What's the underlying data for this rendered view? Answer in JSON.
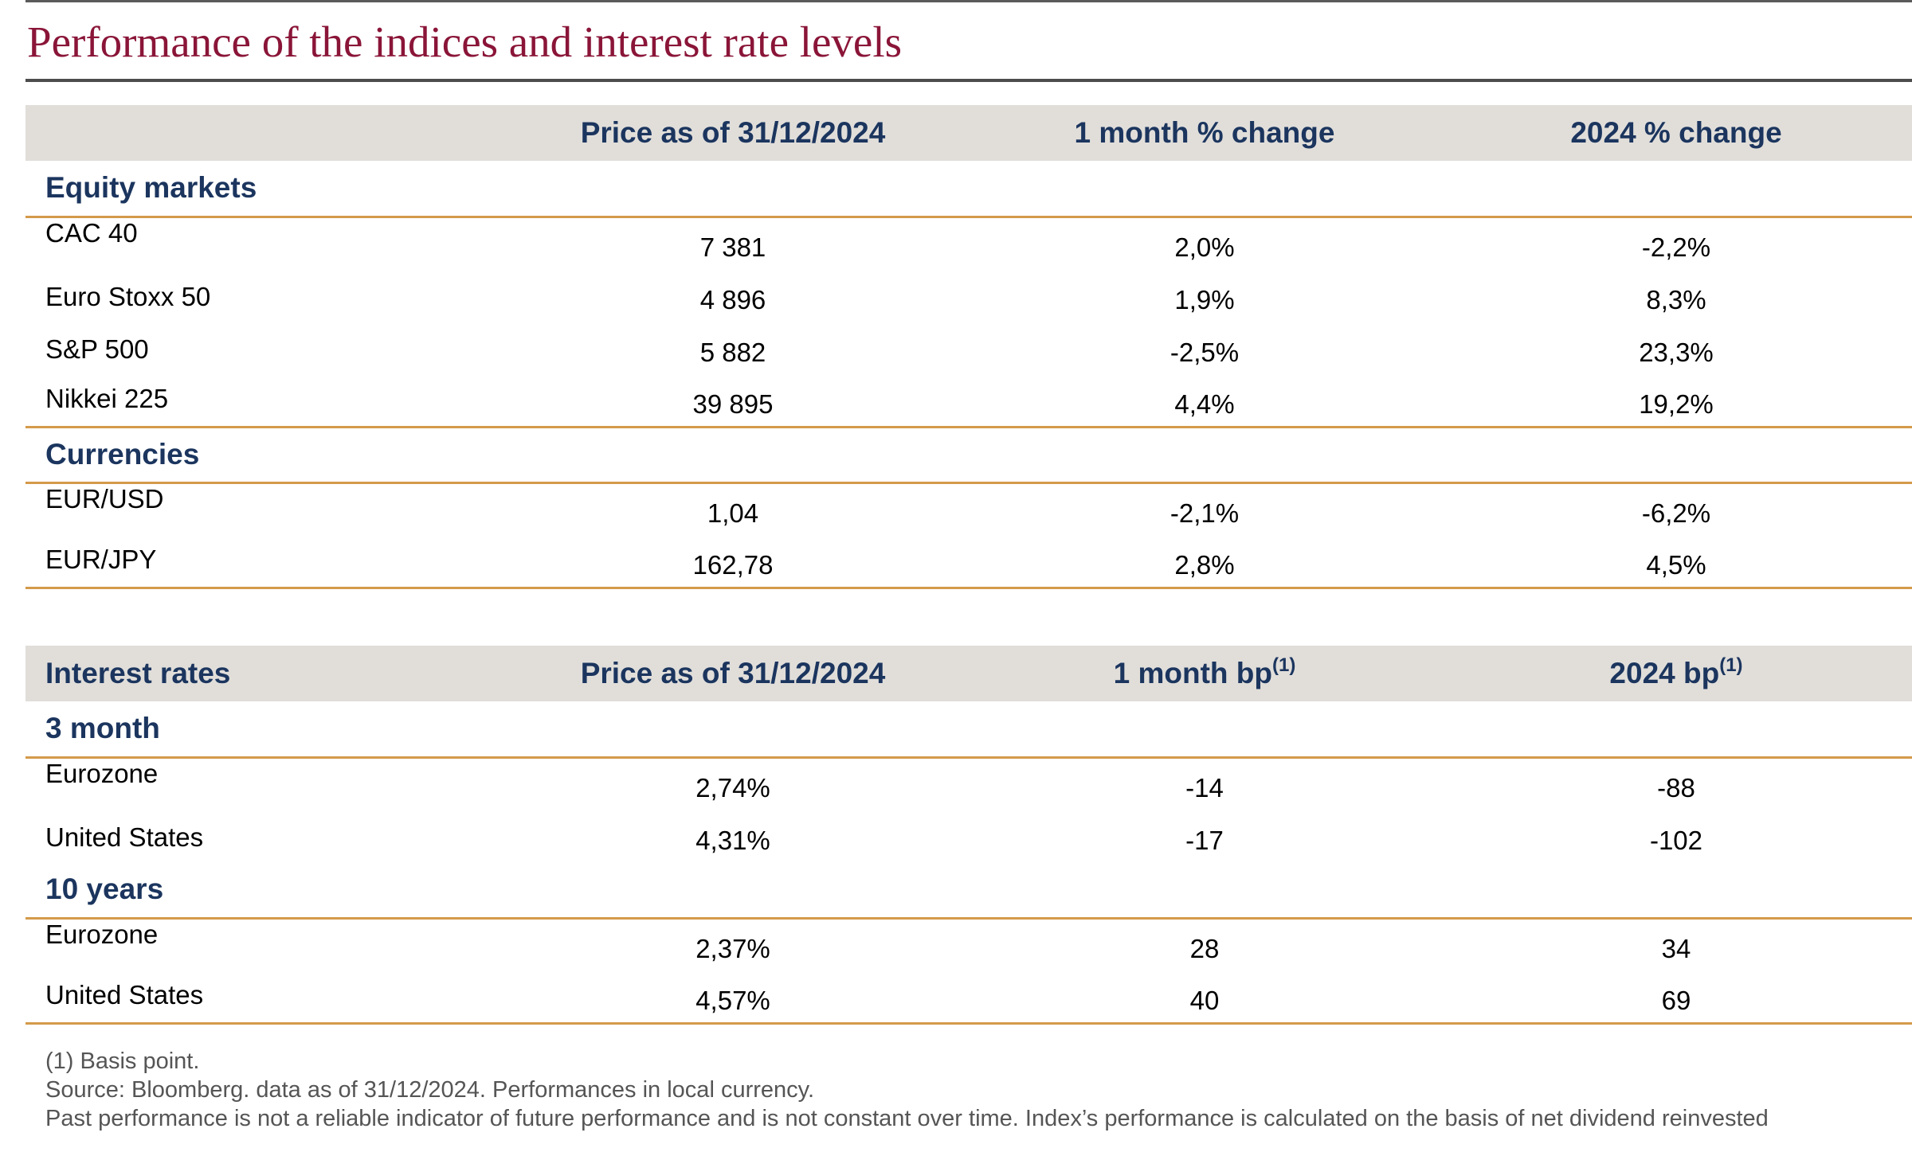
{
  "title": "Performance of the indices and interest rate levels",
  "colors": {
    "title": "#8a1538",
    "header_text": "#1b355e",
    "header_bg": "#e1deda",
    "accent_rule": "#d49a4a"
  },
  "table1": {
    "headers": {
      "label": "",
      "price": "Price as of 31/12/2024",
      "month": "1 month % change",
      "year": "2024 % change"
    },
    "sections": [
      {
        "label": "Equity markets",
        "rows": [
          {
            "name": "CAC 40",
            "price": "7 381",
            "month": "2,0%",
            "year": "-2,2%"
          },
          {
            "name": "Euro Stoxx 50",
            "price": "4 896",
            "month": "1,9%",
            "year": "8,3%"
          },
          {
            "name": "S&P 500",
            "price": "5 882",
            "month": "-2,5%",
            "year": "23,3%"
          },
          {
            "name": "Nikkei 225",
            "price": "39 895",
            "month": "4,4%",
            "year": "19,2%"
          }
        ]
      },
      {
        "label": "Currencies",
        "rows": [
          {
            "name": "EUR/USD",
            "price": "1,04",
            "month": "-2,1%",
            "year": "-6,2%"
          },
          {
            "name": "EUR/JPY",
            "price": "162,78",
            "month": "2,8%",
            "year": "4,5%"
          }
        ]
      }
    ]
  },
  "table2": {
    "headers": {
      "label": "Interest rates",
      "price": "Price as of 31/12/2024",
      "month": "1 month bp",
      "month_sup": "(1)",
      "year": "2024 bp",
      "year_sup": "(1)"
    },
    "sections": [
      {
        "label": "3 month",
        "rows": [
          {
            "name": "Eurozone",
            "price": "2,74%",
            "month": "-14",
            "year": "-88"
          },
          {
            "name": "United States",
            "price": "4,31%",
            "month": "-17",
            "year": "-102"
          }
        ]
      },
      {
        "label": "10 years",
        "rows": [
          {
            "name": "Eurozone",
            "price": "2,37%",
            "month": "28",
            "year": "34"
          },
          {
            "name": "United States",
            "price": "4,57%",
            "month": "40",
            "year": "69"
          }
        ]
      }
    ]
  },
  "footnotes": {
    "basis_point": "(1) Basis point.",
    "source": "Source: Bloomberg. data as of 31/12/2024. Performances in local currency.",
    "disclaimer": "Past performance is not a reliable indicator of future performance and is not constant over time. Index’s performance is calculated on the basis of net dividend reinvested"
  }
}
